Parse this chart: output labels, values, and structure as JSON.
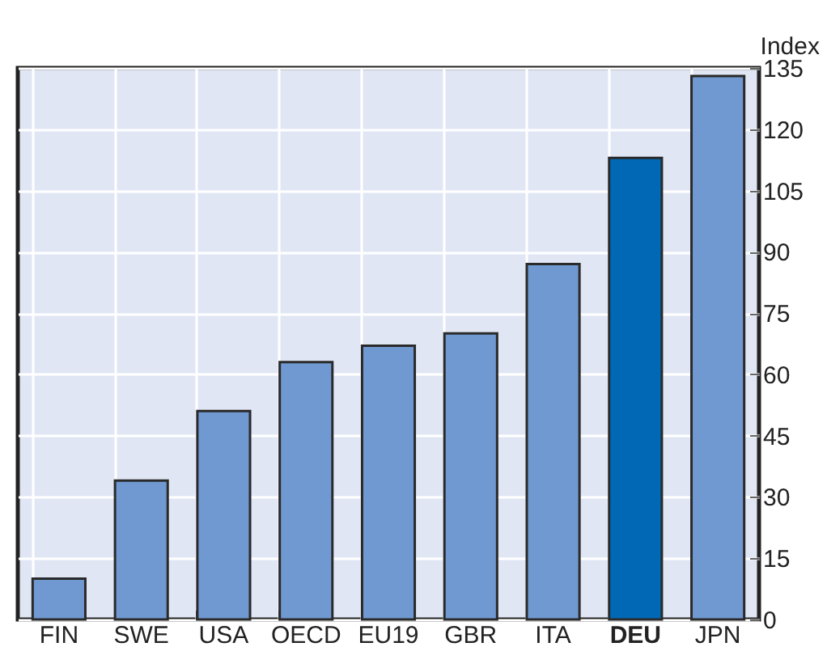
{
  "chart_data": {
    "type": "bar",
    "ylabel": "Index",
    "categories": [
      "FIN",
      "SWE",
      "USA",
      "OECD",
      "EU19",
      "GBR",
      "ITA",
      "DEU",
      "JPN"
    ],
    "values": [
      10,
      34,
      51,
      63,
      67,
      70,
      87,
      113,
      133
    ],
    "colors": [
      "#7099d1",
      "#7099d1",
      "#7099d1",
      "#7099d1",
      "#7099d1",
      "#7099d1",
      "#7099d1",
      "#0068b4",
      "#7099d1"
    ],
    "ylim": [
      0,
      135
    ],
    "yticks": [
      0,
      15,
      30,
      45,
      60,
      75,
      90,
      105,
      120,
      135
    ],
    "grid": true
  }
}
